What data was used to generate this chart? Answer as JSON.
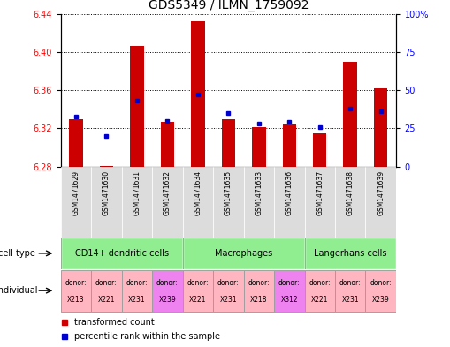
{
  "title": "GDS5349 / ILMN_1759092",
  "samples": [
    "GSM1471629",
    "GSM1471630",
    "GSM1471631",
    "GSM1471632",
    "GSM1471634",
    "GSM1471635",
    "GSM1471633",
    "GSM1471636",
    "GSM1471637",
    "GSM1471638",
    "GSM1471639"
  ],
  "red_values": [
    6.33,
    6.281,
    6.406,
    6.327,
    6.432,
    6.33,
    6.321,
    6.324,
    6.315,
    6.39,
    6.362
  ],
  "blue_values_pct": [
    33,
    20,
    43,
    30,
    47,
    35,
    28,
    29,
    26,
    38,
    36
  ],
  "ylim_left": [
    6.28,
    6.44
  ],
  "ylim_right": [
    0,
    100
  ],
  "yticks_left": [
    6.28,
    6.32,
    6.36,
    6.4,
    6.44
  ],
  "yticks_right": [
    0,
    25,
    50,
    75,
    100
  ],
  "groups": [
    {
      "label": "CD14+ dendritic cells",
      "start": 0,
      "end": 4,
      "color": "#90EE90"
    },
    {
      "label": "Macrophages",
      "start": 4,
      "end": 8,
      "color": "#90EE90"
    },
    {
      "label": "Langerhans cells",
      "start": 8,
      "end": 11,
      "color": "#90EE90"
    }
  ],
  "individual_ids": [
    "X213",
    "X221",
    "X231",
    "X239",
    "X221",
    "X231",
    "X218",
    "X312",
    "X221",
    "X231",
    "X239"
  ],
  "individual_colors": [
    "#FFB6C1",
    "#FFB6C1",
    "#FFB6C1",
    "#EE82EE",
    "#FFB6C1",
    "#FFB6C1",
    "#FFB6C1",
    "#EE82EE",
    "#FFB6C1",
    "#FFB6C1",
    "#FFB6C1"
  ],
  "bar_width": 0.45,
  "red_color": "#CC0000",
  "blue_color": "#0000CC",
  "base_value": 6.28,
  "bg_sample_color": "#DCDCDC"
}
